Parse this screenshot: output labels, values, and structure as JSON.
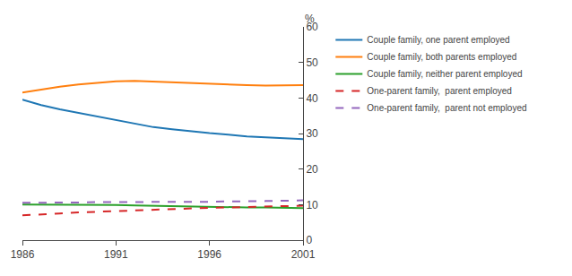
{
  "chart_data": {
    "type": "line",
    "y_label": "%",
    "x": [
      1986,
      1987,
      1988,
      1989,
      1990,
      1991,
      1992,
      1993,
      1994,
      1995,
      1996,
      1997,
      1998,
      1999,
      2000,
      2001
    ],
    "series": [
      {
        "name": "Couple family, one parent employed",
        "line_style": "solid",
        "values": [
          39.5,
          38.0,
          36.8,
          35.8,
          34.8,
          33.8,
          32.8,
          31.8,
          31.2,
          30.6,
          30.1,
          29.7,
          29.2,
          28.9,
          28.6,
          28.4
        ]
      },
      {
        "name": "Couple family, both parents employed",
        "line_style": "solid",
        "values": [
          41.5,
          42.3,
          43.2,
          43.8,
          44.3,
          44.7,
          44.8,
          44.6,
          44.4,
          44.1,
          43.9,
          43.7,
          43.6,
          43.5,
          43.5,
          43.6
        ]
      },
      {
        "name": "Couple family, neither parent employed",
        "line_style": "solid",
        "values": [
          10.0,
          10.0,
          9.9,
          9.9,
          9.9,
          9.9,
          9.8,
          9.7,
          9.5,
          9.4,
          9.3,
          9.2,
          9.2,
          9.2,
          9.1,
          9.0
        ]
      },
      {
        "name": "One-parent family,  parent employed",
        "line_style": "dash",
        "values": [
          7.0,
          7.2,
          7.5,
          7.8,
          8.0,
          8.2,
          8.4,
          8.6,
          8.8,
          9.0,
          9.1,
          9.2,
          9.3,
          9.5,
          9.6,
          9.7
        ]
      },
      {
        "name": "One-parent family,  parent not employed",
        "line_style": "dash",
        "values": [
          10.5,
          10.5,
          10.5,
          10.6,
          10.7,
          10.7,
          10.7,
          10.7,
          10.8,
          10.8,
          10.8,
          10.9,
          10.9,
          11.0,
          11.1,
          11.2
        ]
      }
    ],
    "xlim": [
      1986,
      2001
    ],
    "xticks": [
      1986,
      1991,
      1996,
      2001
    ],
    "ylim": [
      0,
      60
    ],
    "yticks": [
      0,
      10,
      20,
      30,
      40,
      50,
      60
    ],
    "grid": false,
    "legend": "right"
  }
}
